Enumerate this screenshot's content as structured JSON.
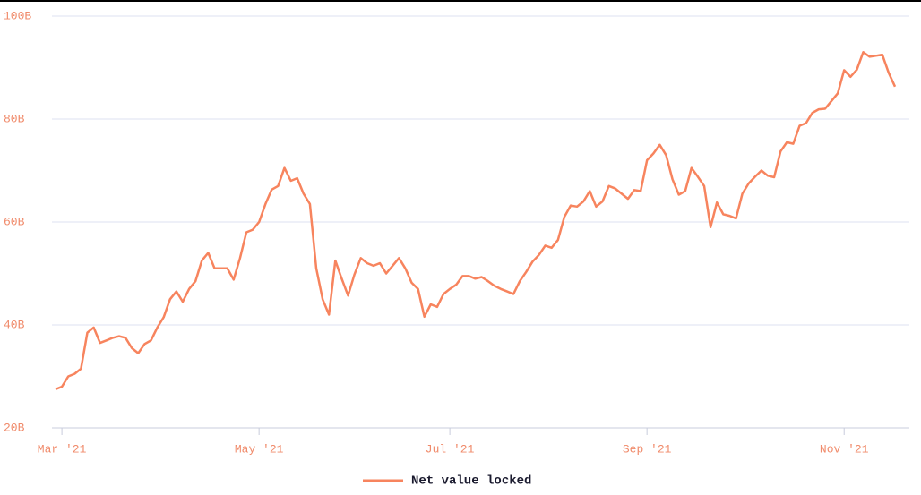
{
  "chart_data": {
    "type": "line",
    "categories": [
      null,
      "Mar '21",
      null,
      null,
      null,
      null,
      null,
      null,
      null,
      null,
      null,
      null,
      null,
      null,
      null,
      null,
      null,
      null,
      null,
      null,
      null,
      null,
      null,
      null,
      null,
      null,
      null,
      null,
      null,
      null,
      null,
      null,
      "May '21",
      null,
      null,
      null,
      null,
      null,
      null,
      null,
      null,
      null,
      null,
      null,
      null,
      null,
      null,
      null,
      null,
      null,
      null,
      null,
      null,
      null,
      null,
      null,
      null,
      null,
      null,
      null,
      null,
      null,
      "Jul '21",
      null,
      null,
      null,
      null,
      null,
      null,
      null,
      null,
      null,
      null,
      null,
      null,
      null,
      null,
      null,
      null,
      null,
      null,
      null,
      null,
      null,
      null,
      null,
      null,
      null,
      null,
      null,
      null,
      null,
      null,
      "Sep '21",
      null,
      null,
      null,
      null,
      null,
      null,
      null,
      null,
      null,
      null,
      null,
      null,
      null,
      null,
      null,
      null,
      null,
      null,
      null,
      null,
      null,
      null,
      null,
      null,
      null,
      null,
      null,
      null,
      null,
      null,
      "Nov '21",
      null,
      null,
      null,
      null,
      null,
      null,
      null,
      null
    ],
    "series": [
      {
        "name": "Net value locked",
        "color": "#f7845e",
        "values": [
          27.5,
          28,
          30,
          30.5,
          31.5,
          38.5,
          39.5,
          36.5,
          37,
          37.5,
          37.8,
          37.5,
          35.5,
          34.5,
          36.3,
          37,
          39.5,
          41.5,
          45,
          46.5,
          44.5,
          47,
          48.5,
          52.5,
          54,
          51,
          51,
          51,
          48.8,
          53,
          58,
          58.5,
          60,
          63.5,
          66.3,
          67,
          70.5,
          68,
          68.5,
          65.5,
          63.5,
          51,
          45,
          42,
          52.5,
          49,
          45.7,
          49.8,
          53,
          52,
          51.5,
          52,
          50,
          51.5,
          53,
          51,
          48.2,
          47,
          41.6,
          44,
          43.5,
          46,
          47,
          47.8,
          49.5,
          49.5,
          49,
          49.3,
          48.5,
          47.6,
          47,
          46.5,
          46,
          48.5,
          50.3,
          52.3,
          53.6,
          55.4,
          55,
          56.5,
          61,
          63.2,
          63,
          64,
          66,
          63,
          64,
          67,
          66.5,
          65.5,
          64.5,
          66.2,
          66,
          72,
          73.3,
          75,
          73,
          68.3,
          65.3,
          66,
          70.5,
          68.8,
          67,
          59,
          63.8,
          61.5,
          61.2,
          60.7,
          65.5,
          67.5,
          68.8,
          70,
          69,
          68.7,
          73.7,
          75.5,
          75.2,
          78.7,
          79.2,
          81.2,
          81.9,
          82,
          83.5,
          85,
          89.5,
          88.2,
          89.6,
          93,
          92.1,
          92.3,
          92.5,
          89,
          86.3
        ]
      }
    ],
    "ylim": [
      20,
      100
    ],
    "yticks": [
      {
        "value": 20,
        "label": "20B"
      },
      {
        "value": 40,
        "label": "40B"
      },
      {
        "value": 60,
        "label": "60B"
      },
      {
        "value": 80,
        "label": "80B"
      },
      {
        "value": 100,
        "label": "100B"
      }
    ],
    "grid": true
  }
}
